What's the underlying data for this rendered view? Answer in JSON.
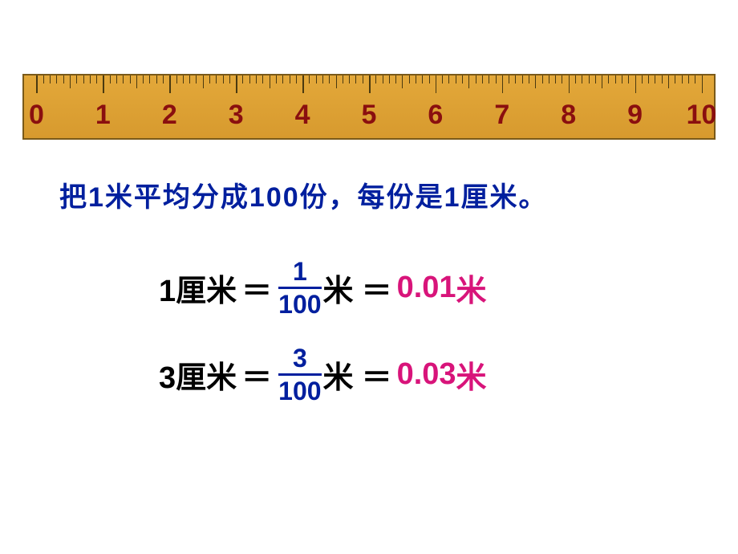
{
  "ruler": {
    "labels": [
      "0",
      "1",
      "2",
      "3",
      "4",
      "5",
      "6",
      "7",
      "8",
      "9",
      "10"
    ],
    "majorColor": "#8a0f0f",
    "bodyColor": "#d79a2e",
    "tickColor": "#4a3a10",
    "subdivisions": 10
  },
  "sentence": "把1米平均分成100份，每份是1厘米。",
  "equations": [
    {
      "lhs": "1厘米",
      "eq1": "＝",
      "fracNum": "1",
      "fracDen": "100",
      "mUnit1": "米",
      "eq2": "＝",
      "dec": "0.01",
      "mUnit2": "米"
    },
    {
      "lhs": "3厘米",
      "eq1": "＝",
      "fracNum": "3",
      "fracDen": "100",
      "mUnit1": "米",
      "eq2": "＝",
      "dec": "0.03",
      "mUnit2": "米"
    }
  ],
  "style": {
    "sentenceColor": "#001f9e",
    "fractionColor": "#001f9e",
    "decimalColor": "#d8147a",
    "textColor": "#000000",
    "fontSizeMain": 38,
    "fontSizeSentence": 34,
    "fontSizeRulerNum": 34
  }
}
